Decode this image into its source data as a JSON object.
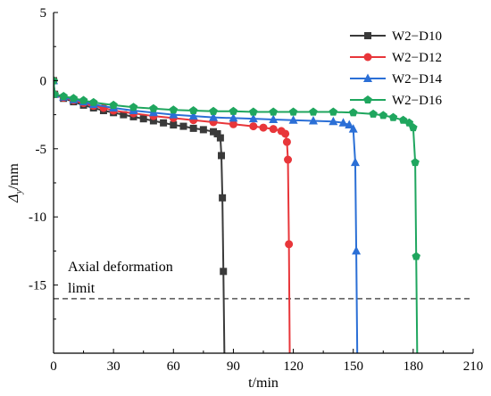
{
  "chart_data": {
    "type": "line",
    "xlabel": "t/min",
    "ylabel": "Δy/mm",
    "ylabel_main": "Δ",
    "ylabel_sub": "y",
    "ylabel_unit": "/mm",
    "xlim": [
      0,
      210
    ],
    "ylim": [
      -20,
      5
    ],
    "x_ticks": [
      0,
      30,
      60,
      90,
      120,
      150,
      180,
      210
    ],
    "x_tick_labels": [
      "0",
      "30",
      "60",
      "90",
      "120",
      "150",
      "180",
      "210"
    ],
    "y_ticks": [
      5,
      0,
      -5,
      -10,
      -15
    ],
    "y_tick_labels": [
      "5",
      "0",
      "-5",
      "-10",
      "-15"
    ],
    "grid": false,
    "legend": {
      "placement": "top-right"
    },
    "reference_line": {
      "y": -16,
      "style": "dashed",
      "label_line1": "Axial deformation",
      "label_line2": "limit"
    },
    "series": [
      {
        "name": "W2−D10",
        "color": "#3a3a3a",
        "marker": "square",
        "x": [
          0,
          0.5,
          5,
          10,
          15,
          20,
          25,
          30,
          35,
          40,
          45,
          50,
          55,
          60,
          65,
          70,
          75,
          80,
          82,
          83.5,
          84,
          84.5,
          85,
          85.5
        ],
        "y": [
          0,
          -1.0,
          -1.3,
          -1.55,
          -1.8,
          -2.0,
          -2.2,
          -2.35,
          -2.5,
          -2.65,
          -2.8,
          -2.95,
          -3.1,
          -3.25,
          -3.35,
          -3.5,
          -3.6,
          -3.75,
          -3.9,
          -4.2,
          -5.5,
          -8.6,
          -14,
          -20
        ]
      },
      {
        "name": "W2−D12",
        "color": "#e8363a",
        "marker": "circle",
        "x": [
          0,
          0.5,
          5,
          10,
          15,
          20,
          25,
          30,
          40,
          50,
          60,
          70,
          80,
          90,
          100,
          105,
          110,
          114,
          116,
          116.8,
          117.3,
          117.8,
          118.2
        ],
        "y": [
          0,
          -1.0,
          -1.25,
          -1.45,
          -1.65,
          -1.85,
          -2.0,
          -2.2,
          -2.4,
          -2.6,
          -2.75,
          -2.9,
          -3.05,
          -3.2,
          -3.35,
          -3.45,
          -3.55,
          -3.7,
          -3.9,
          -4.5,
          -5.8,
          -12,
          -20
        ]
      },
      {
        "name": "W2−D14",
        "color": "#2b6fd6",
        "marker": "triangle",
        "x": [
          0,
          0.5,
          5,
          10,
          15,
          20,
          30,
          40,
          50,
          60,
          70,
          80,
          90,
          100,
          110,
          120,
          130,
          140,
          145,
          148,
          150,
          151,
          151.5,
          152
        ],
        "y": [
          0,
          -1.0,
          -1.2,
          -1.4,
          -1.55,
          -1.75,
          -2.0,
          -2.2,
          -2.35,
          -2.5,
          -2.6,
          -2.7,
          -2.75,
          -2.8,
          -2.85,
          -2.9,
          -2.95,
          -3.0,
          -3.1,
          -3.25,
          -3.55,
          -6,
          -12.5,
          -20
        ]
      },
      {
        "name": "W2−D16",
        "color": "#1fa65e",
        "marker": "pentagon",
        "x": [
          0,
          0.5,
          5,
          10,
          15,
          20,
          30,
          40,
          50,
          60,
          70,
          80,
          90,
          100,
          110,
          120,
          130,
          140,
          150,
          160,
          165,
          170,
          175,
          178,
          180,
          181,
          181.5,
          182
        ],
        "y": [
          0,
          -1.0,
          -1.15,
          -1.3,
          -1.45,
          -1.6,
          -1.8,
          -1.95,
          -2.05,
          -2.15,
          -2.2,
          -2.25,
          -2.25,
          -2.3,
          -2.3,
          -2.3,
          -2.3,
          -2.3,
          -2.35,
          -2.45,
          -2.55,
          -2.7,
          -2.9,
          -3.1,
          -3.45,
          -6,
          -12.9,
          -20
        ]
      }
    ]
  }
}
